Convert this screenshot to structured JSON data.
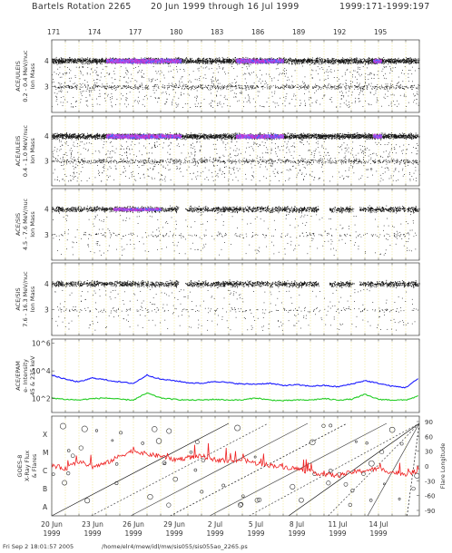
{
  "header": {
    "title": "Bartels Rotation 2265",
    "dates": "20 Jun 1999 through 16 Jul 1999",
    "doy_range": "1999:171-1999:197"
  },
  "footer": {
    "timestamp": "Fri Sep  2 18:01:57 2005",
    "path": "/home/elr4/mew/idl/mw/sis055/sis055ao_2265.ps"
  },
  "chart_data": [
    {
      "type": "scatter",
      "panel": "ULEIS 0.2-0.4 MeV/nuc",
      "ylabel": [
        "ACE/ULEIS",
        "0.2 - 0.4 MeV/nuc",
        "Ion Mass"
      ],
      "yticks": [
        "4",
        "3"
      ],
      "ylim": [
        2,
        4.8
      ],
      "density_colors": [
        "#000000",
        "#cc33cc",
        "#9966ff",
        "#3366ff"
      ],
      "helium_band_mass": 4,
      "he3_band_mass": 3,
      "helium_enhancement_days": [
        [
          175,
          180.5
        ],
        [
          184.5,
          188
        ],
        [
          194.6,
          195.2
        ]
      ]
    },
    {
      "type": "scatter",
      "panel": "ULEIS 0.4-1.0 MeV/nuc",
      "ylabel": [
        "ACE/ULEIS",
        "0.4 - 1.0 MeV/nuc",
        "Ion Mass"
      ],
      "yticks": [
        "4",
        "3"
      ],
      "ylim": [
        2,
        4.8
      ],
      "helium_band_mass": 4,
      "he3_band_mass": 3
    },
    {
      "type": "scatter",
      "panel": "SIS 4.5-7.6 MeV/nuc",
      "ylabel": [
        "ACE/SIS",
        "4.5 - 7.6 MeV/nuc",
        "Ion Mass"
      ],
      "yticks": [
        "4",
        "3"
      ],
      "ylim": [
        2,
        4.8
      ],
      "helium_band_mass": 4,
      "he3_band_mass": 3
    },
    {
      "type": "scatter",
      "panel": "SIS 7.6-16.3 MeV/nuc",
      "ylabel": [
        "ACE/SIS",
        "7.6 - 16.3 MeV/nuc",
        "Ion Mass"
      ],
      "yticks": [
        "4",
        "3"
      ],
      "ylim": [
        2,
        4.8
      ],
      "helium_band_mass": 4,
      "he3_band_mass": 3
    },
    {
      "type": "line",
      "panel": "EPAM electrons",
      "ylabel": [
        "ACE/EPAM",
        "e- Intensity",
        "45 & 235 keV"
      ],
      "yticks": [
        "10^6",
        "10^4",
        "10^2"
      ],
      "log_scale": true,
      "ylim_exp": [
        1,
        6.3
      ],
      "x": [
        171,
        172,
        173,
        174,
        175,
        176,
        177,
        178,
        179,
        180,
        181,
        182,
        183,
        184,
        185,
        186,
        187,
        188,
        189,
        190,
        191,
        192,
        193,
        194,
        195,
        196,
        197,
        198
      ],
      "series": [
        {
          "color": "#1a1aff",
          "log_values": [
            3.7,
            3.4,
            3.2,
            3.5,
            3.35,
            3.2,
            3.1,
            3.7,
            3.4,
            3.3,
            3.15,
            3.1,
            3.25,
            3.15,
            3.05,
            3.05,
            3.1,
            2.95,
            3.0,
            2.9,
            2.95,
            2.85,
            3.05,
            3.3,
            3.1,
            2.9,
            2.8,
            3.5
          ]
        },
        {
          "color": "#22cc22",
          "log_values": [
            2.05,
            1.95,
            1.9,
            2.0,
            2.05,
            1.95,
            1.9,
            2.4,
            2.05,
            1.95,
            1.9,
            1.9,
            1.95,
            1.9,
            1.9,
            2.05,
            1.9,
            1.85,
            1.9,
            1.9,
            2.0,
            1.9,
            1.95,
            2.3,
            1.95,
            1.9,
            1.9,
            2.2
          ]
        }
      ]
    },
    {
      "type": "line",
      "panel": "GOES-8 X-ray flux",
      "ylabel": [
        "GOES-8",
        "X-Ray Flux",
        "& Flares"
      ],
      "yticks_left": [
        "X",
        "M",
        "C",
        "B",
        "A"
      ],
      "yticks_right": [
        "90",
        "60",
        "30",
        "0",
        "-30",
        "-60",
        "-90"
      ],
      "ylabel_right": "Flare Longitude",
      "flux_color": "#ee2222",
      "flux_x": [
        171,
        172,
        173,
        174,
        175,
        176,
        177,
        178,
        179,
        180,
        181,
        182,
        183,
        184,
        185,
        186,
        187,
        188,
        189,
        190,
        191,
        192,
        193,
        194,
        195,
        196,
        197,
        198
      ],
      "flux_class": [
        2.3,
        2.1,
        2.5,
        2.2,
        2.4,
        2.8,
        3.1,
        2.9,
        2.8,
        2.6,
        2.7,
        2.8,
        2.6,
        2.5,
        2.6,
        2.4,
        2.3,
        2.2,
        2.1,
        1.9,
        1.8,
        1.7,
        1.9,
        2.0,
        2.1,
        1.9,
        1.8,
        2.0
      ],
      "flux_class_scale": "A=0, B=1, C=2, M=3, X=4"
    }
  ],
  "axis": {
    "doy_ticks": [
      "171",
      "174",
      "177",
      "180",
      "183",
      "186",
      "189",
      "192",
      "195"
    ],
    "doy_values": [
      171,
      174,
      177,
      180,
      183,
      186,
      189,
      192,
      195
    ],
    "xlim": [
      171,
      198
    ],
    "date_ticks": [
      {
        "day": 171,
        "label": "20 Jun",
        "year": "1999"
      },
      {
        "day": 174,
        "label": "23 Jun",
        "year": "1999"
      },
      {
        "day": 177,
        "label": "26 Jun",
        "year": "1999"
      },
      {
        "day": 180,
        "label": "29 Jun",
        "year": "1999"
      },
      {
        "day": 183,
        "label": "2 Jul",
        "year": "1999"
      },
      {
        "day": 186,
        "label": "5 Jul",
        "year": "1999"
      },
      {
        "day": 189,
        "label": "8 Jul",
        "year": "1999"
      },
      {
        "day": 192,
        "label": "11 Jul",
        "year": "1999"
      },
      {
        "day": 195,
        "label": "14 Jul",
        "year": "1999"
      }
    ]
  },
  "colors": {
    "grid": "#efe58c",
    "frame": "#555555",
    "dots": "#111111"
  }
}
